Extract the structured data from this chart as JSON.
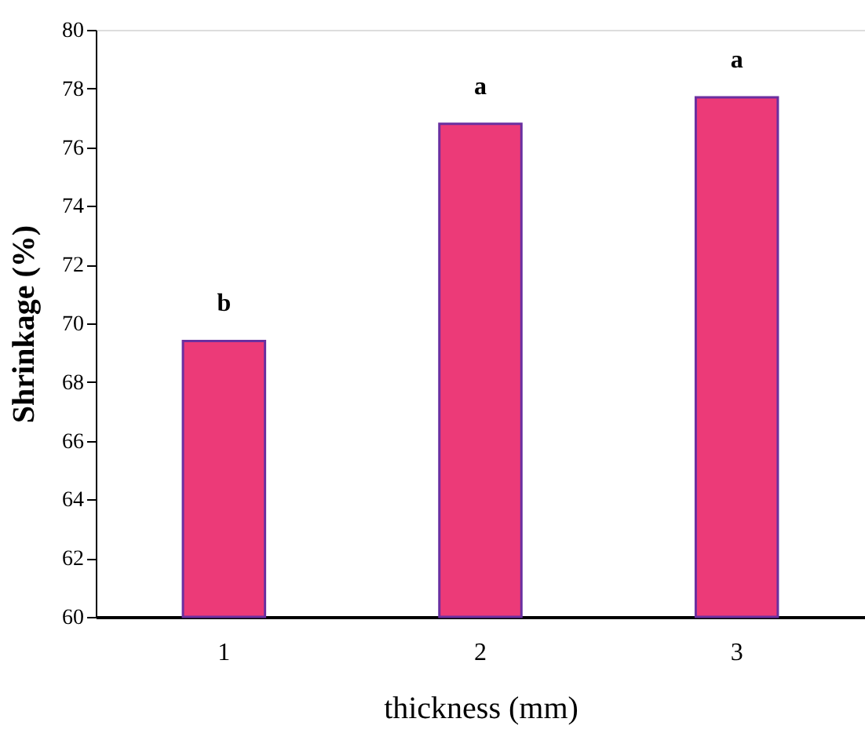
{
  "chart_data": {
    "type": "bar",
    "xlabel": "thickness (mm)",
    "ylabel": "Shrinkage (%)",
    "categories": [
      "1",
      "2",
      "3"
    ],
    "values": [
      69.4,
      76.8,
      77.7
    ],
    "color": "#ec3a78",
    "ylim": [
      60,
      80
    ],
    "yticks": [
      60,
      62,
      64,
      66,
      68,
      70,
      72,
      74,
      76,
      78,
      80
    ],
    "grid": false,
    "annotations": [
      {
        "text": "b",
        "x": "1",
        "y": 69.4
      },
      {
        "text": "a",
        "x": "2",
        "y": 76.8
      },
      {
        "text": "a",
        "x": "3",
        "y": 77.7
      }
    ]
  }
}
